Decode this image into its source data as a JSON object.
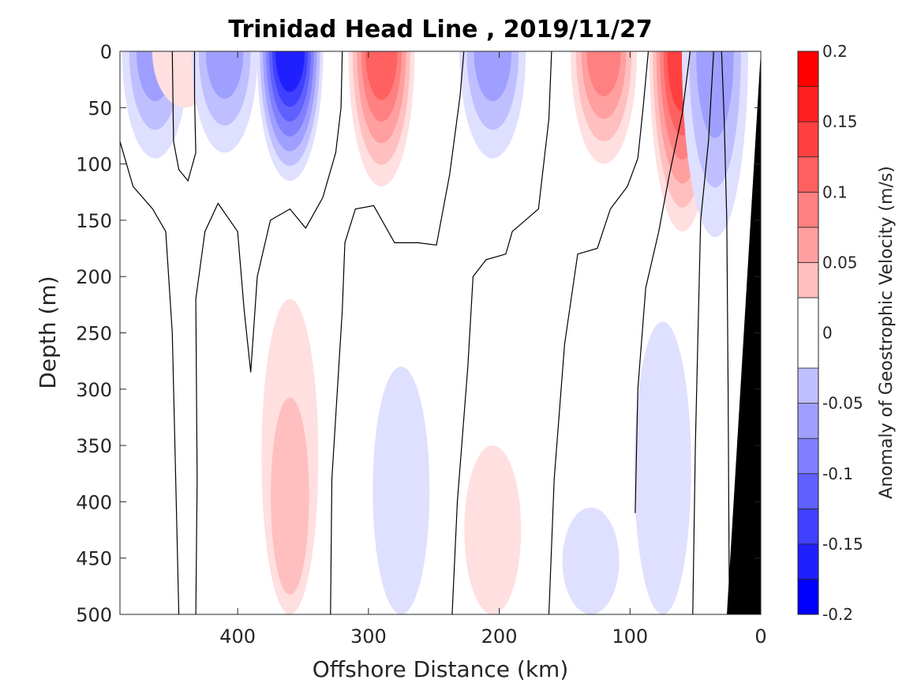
{
  "chart_data": {
    "type": "heatmap",
    "title": "Trinidad Head Line , 2019/11/27",
    "xlabel": "Offshore Distance (km)",
    "ylabel": "Depth (m)",
    "xlim": [
      490,
      0
    ],
    "ylim": [
      0,
      500
    ],
    "y_reversed": true,
    "x_ticks": [
      400,
      300,
      200,
      100,
      0
    ],
    "y_ticks": [
      0,
      50,
      100,
      150,
      200,
      250,
      300,
      350,
      400,
      450,
      500
    ],
    "colorbar": {
      "label": "Anomaly of Geostrophic Velocity (m/s)",
      "range": [
        -0.2,
        0.2
      ],
      "ticks": [
        0.2,
        0.15,
        0.1,
        0.05,
        0,
        -0.05,
        -0.1,
        -0.15,
        -0.2
      ],
      "tick_labels": [
        "0.2",
        "0.15",
        "0.1",
        "0.05",
        "0",
        "-0.05",
        "-0.1",
        "-0.15",
        "-0.2"
      ],
      "levels": [
        -0.2,
        -0.175,
        -0.15,
        -0.125,
        -0.1,
        -0.075,
        -0.05,
        -0.025,
        0.025,
        0.05,
        0.075,
        0.1,
        0.125,
        0.15,
        0.175,
        0.2
      ]
    },
    "features": [
      {
        "sign": "negative",
        "x_center_km": 463,
        "depth_range_m": [
          0,
          95
        ],
        "peak": -0.075
      },
      {
        "sign": "positive",
        "x_center_km": 440,
        "depth_range_m": [
          0,
          50
        ],
        "peak": 0.03
      },
      {
        "sign": "negative",
        "x_center_km": 410,
        "depth_range_m": [
          0,
          90
        ],
        "peak": -0.075
      },
      {
        "sign": "negative",
        "x_center_km": 360,
        "depth_range_m": [
          0,
          115
        ],
        "peak": -0.175
      },
      {
        "sign": "positive",
        "x_center_km": 290,
        "depth_range_m": [
          0,
          120
        ],
        "peak": 0.125
      },
      {
        "sign": "negative",
        "x_center_km": 205,
        "depth_range_m": [
          0,
          95
        ],
        "peak": -0.075
      },
      {
        "sign": "positive",
        "x_center_km": 120,
        "depth_range_m": [
          0,
          100
        ],
        "peak": 0.1
      },
      {
        "sign": "positive",
        "x_center_km": 60,
        "depth_range_m": [
          0,
          160
        ],
        "peak": 0.15
      },
      {
        "sign": "negative",
        "x_center_km": 35,
        "depth_range_m": [
          0,
          165
        ],
        "peak": -0.075
      },
      {
        "sign": "positive",
        "x_center_km": 360,
        "depth_range_m": [
          220,
          500
        ],
        "peak": 0.06
      },
      {
        "sign": "negative",
        "x_center_km": 275,
        "depth_range_m": [
          280,
          500
        ],
        "peak": -0.035
      },
      {
        "sign": "positive",
        "x_center_km": 205,
        "depth_range_m": [
          350,
          500
        ],
        "peak": 0.035
      },
      {
        "sign": "negative",
        "x_center_km": 130,
        "depth_range_m": [
          405,
          500
        ],
        "peak": -0.035
      },
      {
        "sign": "negative",
        "x_center_km": 75,
        "depth_range_m": [
          240,
          500
        ],
        "peak": -0.03
      }
    ],
    "bathymetry": {
      "color": "#000000",
      "depth_at_0km": 0,
      "x_at_500m": 25
    }
  }
}
